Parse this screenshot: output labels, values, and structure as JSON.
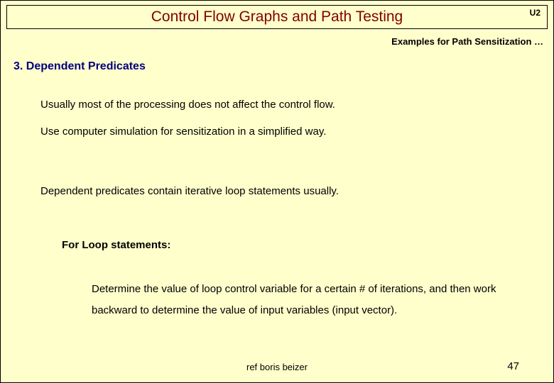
{
  "colors": {
    "background": "#ffffcc",
    "title_color": "#800000",
    "heading_color": "#000080",
    "text_color": "#000000",
    "border_color": "#000000"
  },
  "typography": {
    "title_fontsize": 21,
    "subtitle_fontsize": 13,
    "heading_fontsize": 16,
    "body_fontsize": 15,
    "footer_fontsize": 13
  },
  "title": "Control Flow Graphs and Path Testing",
  "corner_label": "U2",
  "subtitle": "Examples for Path Sensitization …",
  "section_heading": "3. Dependent Predicates",
  "body": {
    "line1": "Usually most of the processing does not affect the control flow.",
    "line2": "Use computer simulation for sensitization in a simplified way.",
    "line3": "Dependent predicates contain iterative loop statements usually.",
    "sub_heading": "For Loop statements:",
    "line4": "Determine the value of loop control variable for a certain # of iterations,   and then work backward to determine the value of input variables (input vector)."
  },
  "footer_ref": "ref boris beizer",
  "page_num": "47"
}
